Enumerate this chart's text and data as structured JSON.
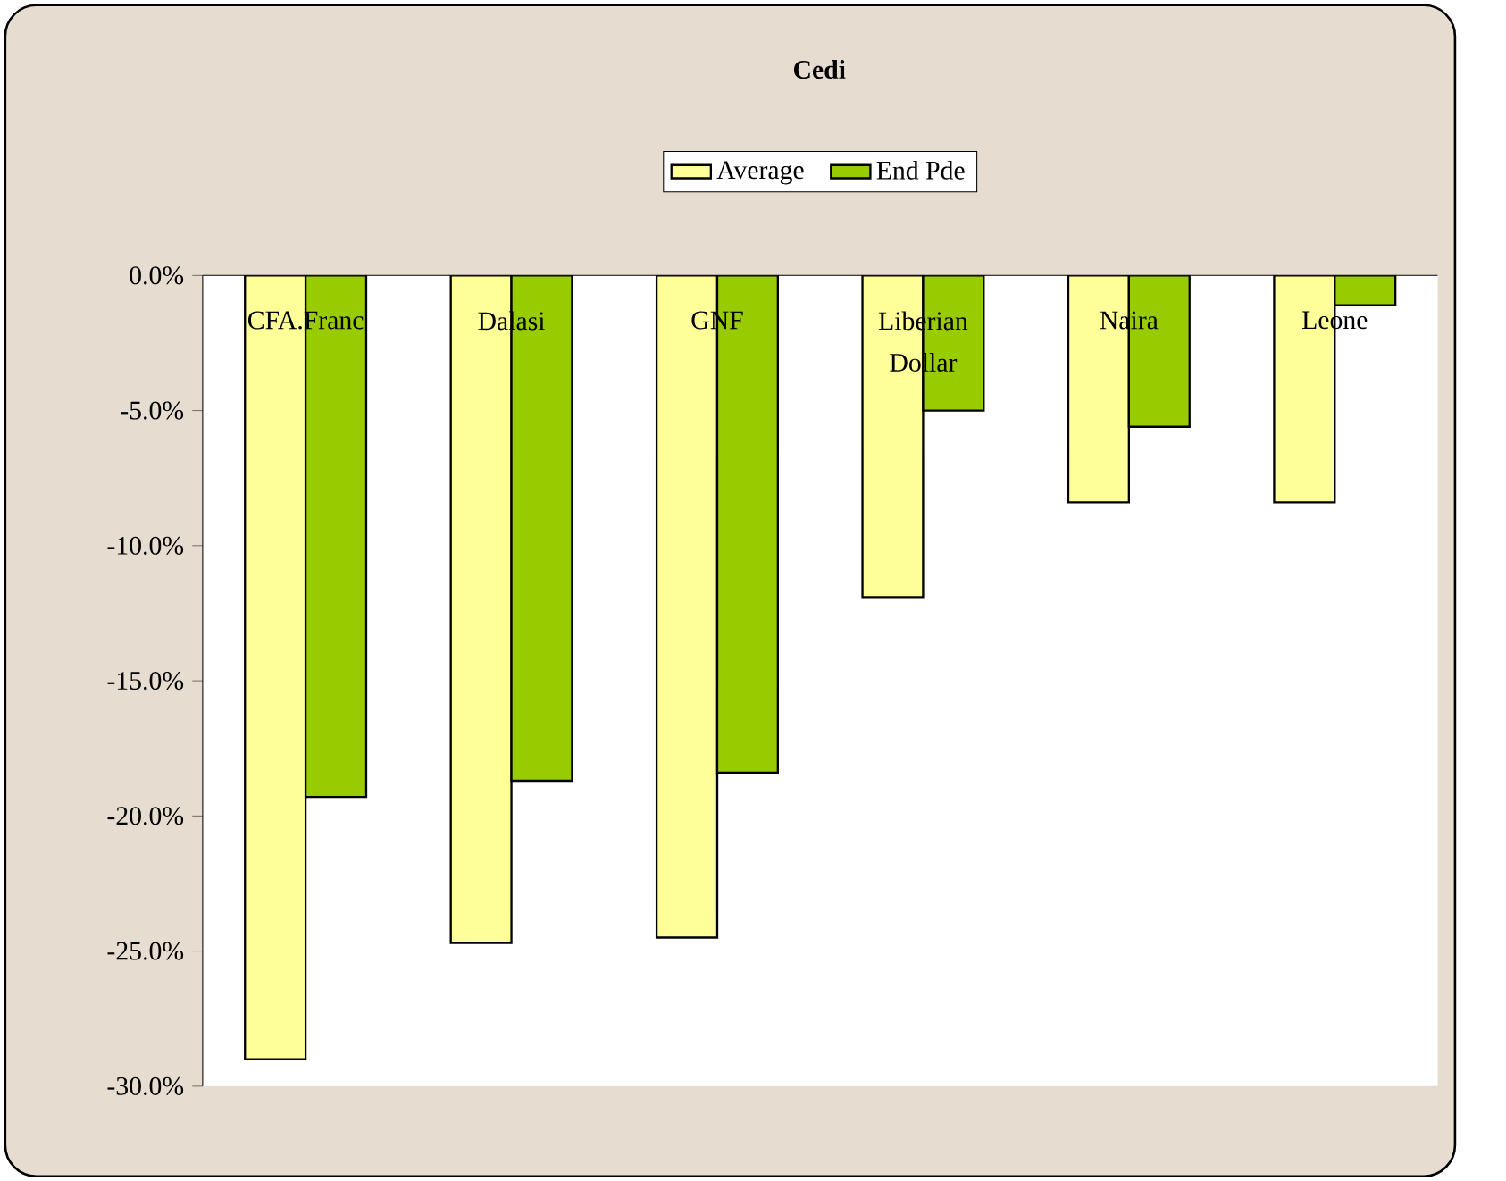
{
  "chart_data": {
    "type": "bar",
    "title": "Cedi",
    "categories": [
      "CFA.Franc",
      "Dalasi",
      "GNF",
      "Liberian Dollar",
      "Naira",
      "Leone"
    ],
    "series": [
      {
        "name": "Average",
        "color": "#ffff99",
        "values": [
          -29.0,
          -24.7,
          -24.5,
          -11.9,
          -8.4,
          -8.4
        ]
      },
      {
        "name": "End Pde",
        "color": "#99cc00",
        "values": [
          -19.3,
          -18.7,
          -18.4,
          -5.0,
          -5.6,
          -1.1
        ]
      }
    ],
    "ylim": [
      -30,
      0
    ],
    "yticks": [
      {
        "value": 0,
        "label": "0.0%"
      },
      {
        "value": -5,
        "label": "-5.0%"
      },
      {
        "value": -10,
        "label": "-10.0%"
      },
      {
        "value": -15,
        "label": "-15.0%"
      },
      {
        "value": -20,
        "label": "-20.0%"
      },
      {
        "value": -25,
        "label": "-25.0%"
      },
      {
        "value": -30,
        "label": "-30.0%"
      }
    ],
    "grid": false,
    "legend": "top"
  }
}
